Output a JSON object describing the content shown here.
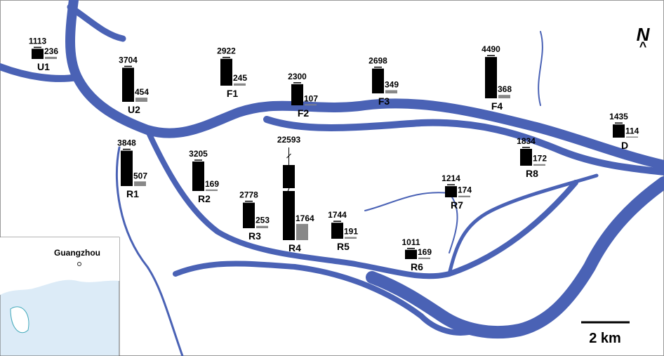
{
  "north": "N",
  "north_arrow": "^",
  "scale_label": "2 km",
  "inset_label": "Guangzhou",
  "stations": [
    {
      "label": "U1",
      "black": 1113,
      "gray": 236
    },
    {
      "label": "U2",
      "black": 3704,
      "gray": 454
    },
    {
      "label": "F1",
      "black": 2922,
      "gray": 245
    },
    {
      "label": "F2",
      "black": 2300,
      "gray": 107
    },
    {
      "label": "F3",
      "black": 2698,
      "gray": 349
    },
    {
      "label": "F4",
      "black": 4490,
      "gray": 368
    },
    {
      "label": "D",
      "black": 1435,
      "gray": 114
    },
    {
      "label": "R1",
      "black": 3848,
      "gray": 507
    },
    {
      "label": "R2",
      "black": 3205,
      "gray": 169
    },
    {
      "label": "R3",
      "black": 2778,
      "gray": 253
    },
    {
      "label": "R4",
      "black": 22593,
      "gray": 1764,
      "broken": true
    },
    {
      "label": "R5",
      "black": 1744,
      "gray": 191
    },
    {
      "label": "R6",
      "black": 1011,
      "gray": 169
    },
    {
      "label": "R7",
      "black": 1214,
      "gray": 174
    },
    {
      "label": "R8",
      "black": 1834,
      "gray": 172
    }
  ]
}
